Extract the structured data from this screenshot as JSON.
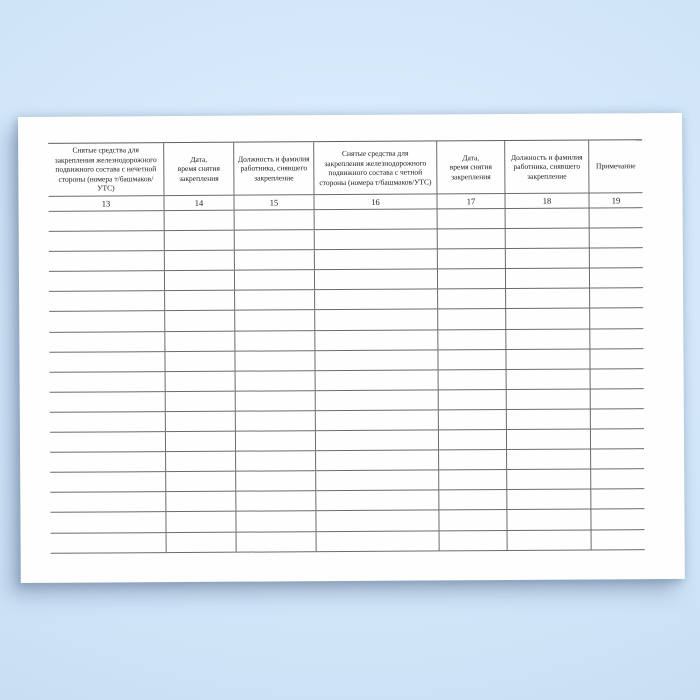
{
  "background": {
    "color_center": "#e1f0fd",
    "color_edge": "#c9def3"
  },
  "document": {
    "kind": "blank paper log form sheet",
    "page_color": "#fefefe",
    "line_color": "#6b6b6b",
    "table": {
      "columns": [
        {
          "number": "13",
          "header": "Снятые средства для\nзакрепления железнодорожного\nподвижного состава с нечетной\nстороны (номера т/башмаков/УТС)"
        },
        {
          "number": "14",
          "header": "Дата,\nвремя снятия\nзакрепления"
        },
        {
          "number": "15",
          "header": "Должность и фамилия\nработника, снявшего\nзакрепление"
        },
        {
          "number": "16",
          "header": "Снятые средства для\nзакрепления железнодорожного\nподвижного состава с четной\nстороны (номера т/башмаков/УТС)"
        },
        {
          "number": "17",
          "header": "Дата,\nвремя снятия\nзакрепления"
        },
        {
          "number": "18",
          "header": "Должность и фамилия\nработника, снявшего\nзакрепление"
        },
        {
          "number": "19",
          "header": "Примечание"
        }
      ],
      "data_row_count": 17,
      "data_cells": ""
    }
  }
}
